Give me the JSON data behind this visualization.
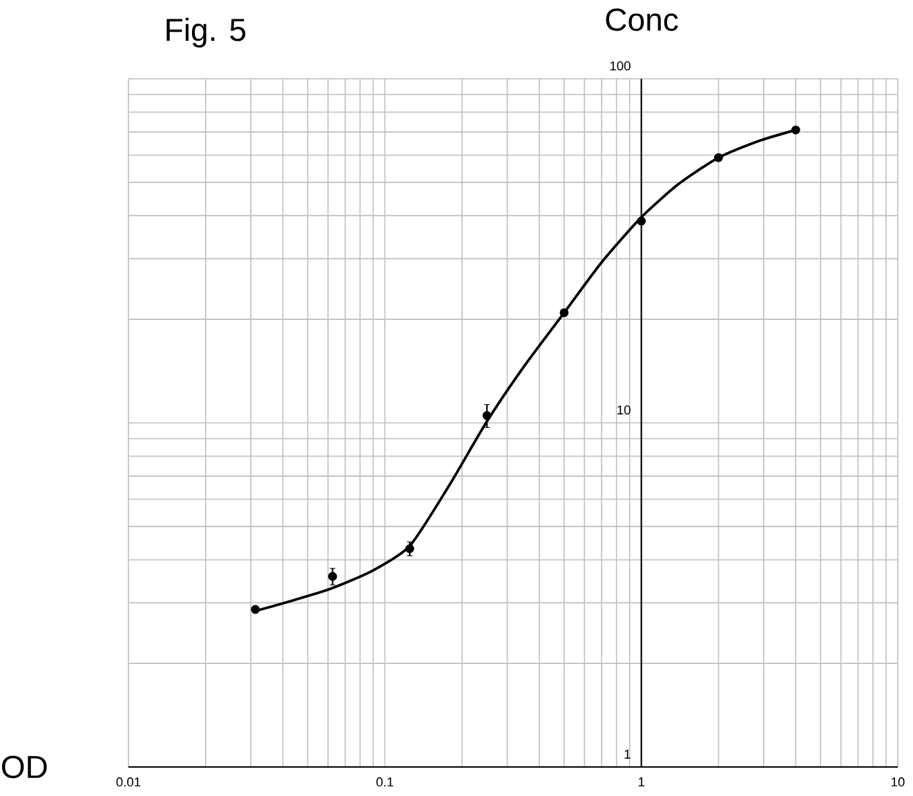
{
  "chart_data": {
    "type": "scatter",
    "title": "Fig. 5",
    "xlabel": "OD",
    "ylabel": "Conc",
    "log": "xy",
    "grid": true,
    "xlim": [
      0.01,
      10
    ],
    "ylim": [
      1,
      100
    ],
    "xticks": [
      0.01,
      0.1,
      1,
      10
    ],
    "yticks": [
      1,
      10,
      100
    ],
    "series": [
      {
        "marker": "circle",
        "color": "#000000",
        "x": [
          0.03125,
          0.0625,
          0.125,
          0.25,
          0.5,
          1,
          2,
          4
        ],
        "values": [
          2.87,
          3.58,
          4.31,
          10.5,
          20.9,
          38.6,
          59,
          71
        ],
        "errors": [
          null,
          0.2,
          0.2,
          0.8,
          null,
          null,
          null,
          null
        ]
      },
      {
        "type": "line",
        "marker": "none",
        "line_style": "solid",
        "color": "#000000",
        "x": [
          0.03125,
          0.0426,
          0.0617,
          0.0896,
          0.125,
          0.177,
          0.25,
          0.349,
          0.5,
          0.698,
          1,
          1.4,
          2,
          2.86,
          4
        ],
        "values": [
          2.84,
          3.03,
          3.3,
          3.72,
          4.39,
          6.53,
          10.1,
          14.6,
          20.9,
          29.2,
          39.6,
          49.5,
          59,
          65.9,
          71
        ]
      }
    ]
  }
}
